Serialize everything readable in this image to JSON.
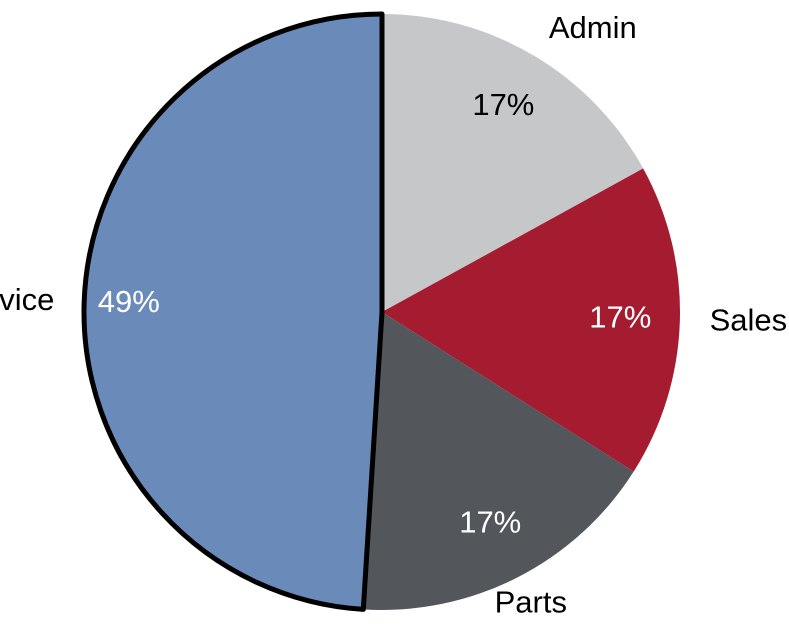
{
  "chart_data": {
    "type": "pie",
    "categories": [
      "Admin",
      "Sales",
      "Parts",
      "Service"
    ],
    "values": [
      17,
      17,
      17,
      49
    ],
    "value_labels": [
      "17%",
      "17%",
      "17%",
      "49%"
    ],
    "colors": [
      "#c6c7c9",
      "#a51c30",
      "#53565a",
      "#6a8bba"
    ],
    "outlined": [
      "Service"
    ]
  }
}
